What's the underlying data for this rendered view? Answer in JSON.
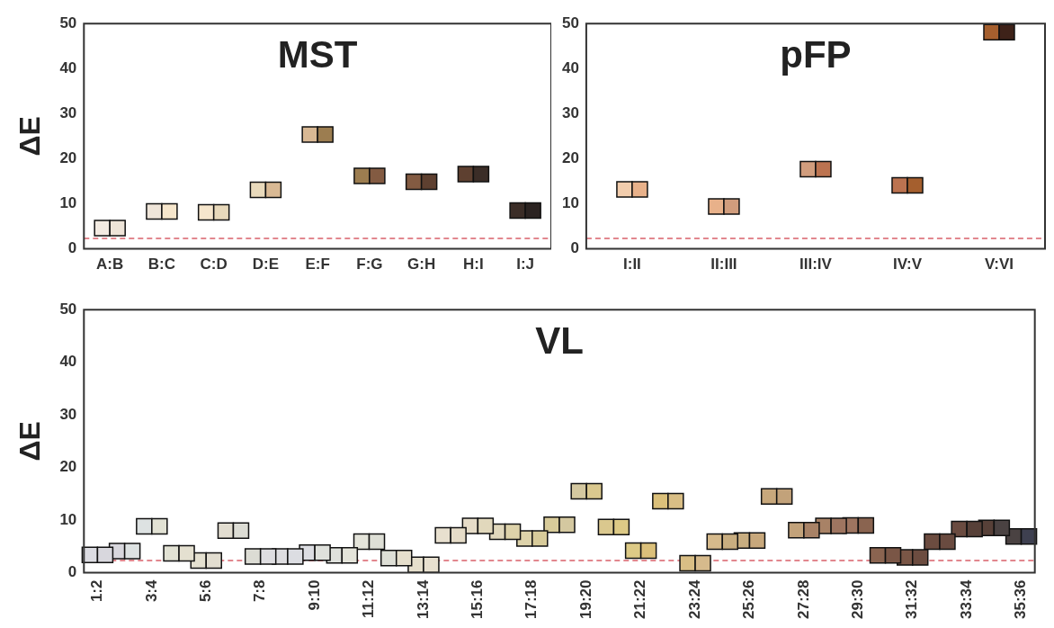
{
  "chart_data": [
    {
      "type": "scatter",
      "title": "MST",
      "ylabel": "ΔE",
      "marker": "square",
      "categories": [
        "A:B",
        "B:C",
        "C:D",
        "D:E",
        "E:F",
        "F:G",
        "G:H",
        "H:I",
        "I:J"
      ],
      "series": [
        {
          "colors": [
            "#f3ebe2",
            "#efe5d9",
            "#f6e6cc",
            "#e8d9bb",
            "#d8b894",
            "#9c7d50",
            "#835b42",
            "#5e4030",
            "#3b2d27"
          ],
          "values": [
            4.6,
            8.3,
            8.1,
            13.1,
            25.4,
            16.2,
            14.9,
            16.6,
            8.5
          ]
        },
        {
          "colors": [
            "#ede4d8",
            "#f6e6cc",
            "#e8d9bb",
            "#d9b994",
            "#9c7d50",
            "#835b42",
            "#5e4030",
            "#3b2d27",
            "#2b2321"
          ],
          "values": [
            4.6,
            8.3,
            8.1,
            13.1,
            25.4,
            16.2,
            14.9,
            16.6,
            8.5
          ]
        }
      ],
      "ylim": [
        0,
        50
      ],
      "yticks": [
        0,
        10,
        20,
        30,
        40,
        50
      ],
      "ref_lines": [
        {
          "axis": "y",
          "value": 2.3,
          "color": "#d9606a",
          "line_style": "dashed"
        }
      ]
    },
    {
      "type": "scatter",
      "title": "pFP",
      "marker": "square",
      "categories": [
        "I:II",
        "II:III",
        "III:IV",
        "IV:V",
        "V:VI"
      ],
      "series": [
        {
          "colors": [
            "#f2cdad",
            "#e8b18a",
            "#d19d7d",
            "#bc7350",
            "#a55f2e"
          ],
          "values": [
            13.2,
            9.4,
            17.7,
            14.1,
            48.1
          ]
        },
        {
          "colors": [
            "#e8b18a",
            "#d19d7d",
            "#bc7350",
            "#a55f2e",
            "#3e2219"
          ],
          "values": [
            13.2,
            9.4,
            17.7,
            14.1,
            48.1
          ]
        }
      ],
      "ylim": [
        0,
        50
      ],
      "yticks": [
        0,
        10,
        20,
        30,
        40,
        50
      ],
      "ref_lines": [
        {
          "axis": "y",
          "value": 2.3,
          "color": "#d9606a",
          "line_style": "dashed"
        }
      ]
    },
    {
      "type": "scatter",
      "title": "VL",
      "ylabel": "ΔE",
      "marker": "square",
      "categories": [
        "1:2",
        null,
        "3:4",
        null,
        "5:6",
        null,
        "7:8",
        null,
        "9:10",
        null,
        "11:12",
        null,
        "13:14",
        null,
        "15:16",
        null,
        "17:18",
        null,
        "19:20",
        null,
        "21:22",
        null,
        "23:24",
        null,
        "25:26",
        null,
        "27:28",
        null,
        "29:30",
        null,
        "31:32",
        null,
        "33:34",
        null,
        "35:36"
      ],
      "series": [
        {
          "colors": [
            "#dcdce2",
            "#d8d7dd",
            "#dde2e2",
            "#e2e2d4",
            "#e4e0d0",
            "#e2ddd0",
            "#dcdcd4",
            "#dedde0",
            "#dcdde2",
            "#dfe1dc",
            "#e4e4da",
            "#dedfd6",
            "#e6dfcc",
            "#e8e0cf",
            "#e6dcc8",
            "#e1d8bc",
            "#ddd2aa",
            "#d8cb9a",
            "#d4c8a0",
            "#dac88e",
            "#ddca86",
            "#dbc07a",
            "#d9be85",
            "#d6ba8c",
            "#c8ad80",
            "#c8a87c",
            "#c2a27a",
            "#a88266",
            "#9e7560",
            "#8a6450",
            "#7a5646",
            "#6c4c40",
            "#6a4b40",
            "#574038",
            "#4a4242"
          ],
          "values": [
            3.4,
            4.1,
            8.8,
            3.7,
            2.3,
            8.0,
            3.1,
            3.1,
            3.8,
            3.3,
            5.9,
            2.8,
            1.5,
            7.1,
            8.9,
            7.8,
            6.5,
            9.1,
            15.5,
            8.7,
            4.2,
            13.6,
            1.8,
            5.9,
            6.1,
            14.5,
            8.1,
            8.9,
            9.0,
            3.3,
            2.9,
            5.9,
            8.3,
            8.5,
            6.9
          ]
        },
        {
          "colors": [
            "#d8d7dd",
            "#dde2e2",
            "#e2e2d4",
            "#e4e0d0",
            "#e2ddd0",
            "#dcdcd4",
            "#dedde0",
            "#dcdde2",
            "#dfe1dc",
            "#e4e4da",
            "#dedfd6",
            "#e6dfcc",
            "#e8e0cf",
            "#e6dcc8",
            "#e1d8bc",
            "#ddd2aa",
            "#d8cb9a",
            "#d4c8a0",
            "#dac88e",
            "#ddca86",
            "#dbc07a",
            "#d9be85",
            "#d6ba8c",
            "#c8ad80",
            "#c8a87c",
            "#c2a27a",
            "#a88266",
            "#9e7560",
            "#8a6450",
            "#7a5646",
            "#6c4c40",
            "#6a4b40",
            "#574038",
            "#4a4242",
            "#3e4050"
          ],
          "values": [
            3.4,
            4.1,
            8.8,
            3.7,
            2.3,
            8.0,
            3.1,
            3.1,
            3.8,
            3.3,
            5.9,
            2.8,
            1.5,
            7.1,
            8.9,
            7.8,
            6.5,
            9.1,
            15.5,
            8.7,
            4.2,
            13.6,
            1.8,
            5.9,
            6.1,
            14.5,
            8.1,
            8.9,
            9.0,
            3.3,
            2.9,
            5.9,
            8.3,
            8.5,
            6.9
          ]
        }
      ],
      "ylim": [
        0,
        50
      ],
      "yticks": [
        0,
        10,
        20,
        30,
        40,
        50
      ],
      "ref_lines": [
        {
          "axis": "y",
          "value": 2.3,
          "color": "#d9606a",
          "line_style": "dashed"
        }
      ]
    }
  ]
}
